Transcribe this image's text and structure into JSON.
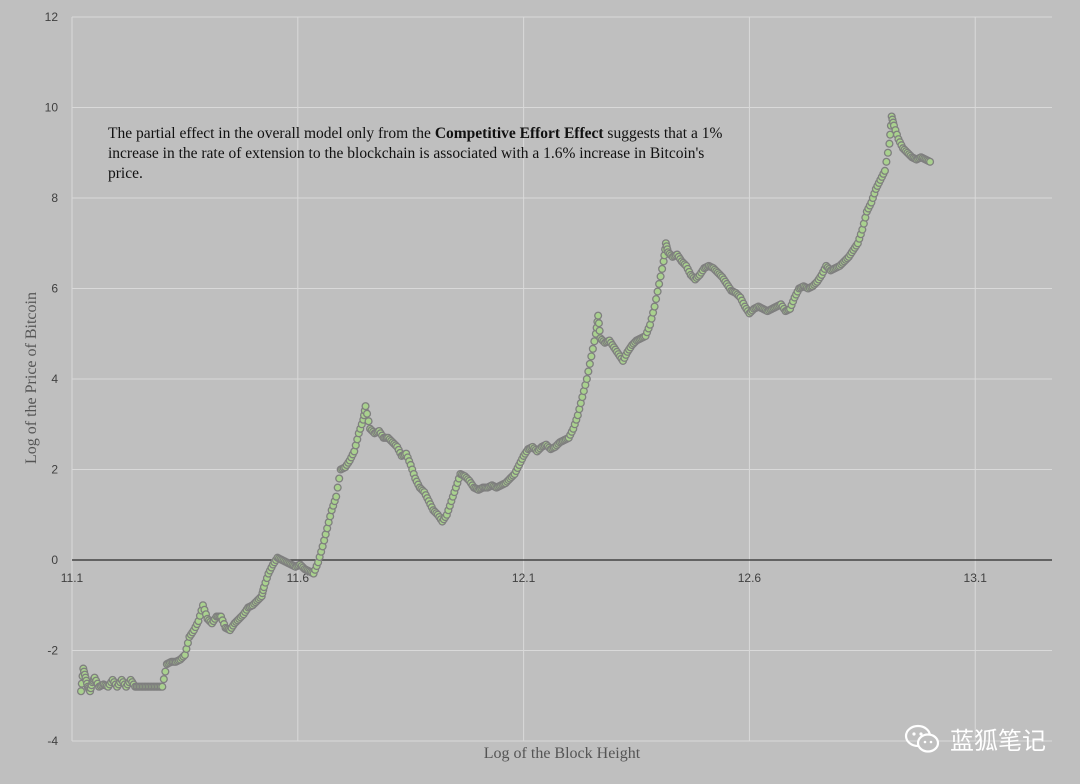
{
  "chart_data": {
    "type": "scatter",
    "xlabel": "Log of the Block Height",
    "ylabel": "Log  of  the  Price  of  Bitcoin",
    "xlim": [
      11.1,
      13.27
    ],
    "ylim": [
      -4,
      12
    ],
    "x_ticks": [
      "11.1",
      "11.6",
      "12.1",
      "12.6",
      "13.1"
    ],
    "y_ticks": [
      "-4",
      "-2",
      "0",
      "2",
      "4",
      "6",
      "8",
      "10",
      "12"
    ],
    "grid": true,
    "annotation": {
      "before": "The partial effect in the overall model only from the ",
      "bold": "Competitive Effort Effect",
      "after": " suggests that a 1% increase in the rate of extension to the blockchain is associated with a 1.6% increase in Bitcoin's price."
    },
    "marker_fill": "#a9d18e",
    "marker_stroke": "#7f7f7f",
    "points": [
      [
        11.12,
        -2.9
      ],
      [
        11.125,
        -2.4
      ],
      [
        11.13,
        -2.6
      ],
      [
        11.135,
        -2.8
      ],
      [
        11.14,
        -2.9
      ],
      [
        11.145,
        -2.7
      ],
      [
        11.15,
        -2.6
      ],
      [
        11.16,
        -2.8
      ],
      [
        11.17,
        -2.75
      ],
      [
        11.18,
        -2.8
      ],
      [
        11.19,
        -2.65
      ],
      [
        11.2,
        -2.8
      ],
      [
        11.21,
        -2.65
      ],
      [
        11.22,
        -2.8
      ],
      [
        11.23,
        -2.65
      ],
      [
        11.24,
        -2.8
      ],
      [
        11.25,
        -2.8
      ],
      [
        11.26,
        -2.8
      ],
      [
        11.27,
        -2.8
      ],
      [
        11.28,
        -2.8
      ],
      [
        11.29,
        -2.8
      ],
      [
        11.3,
        -2.8
      ],
      [
        11.31,
        -2.3
      ],
      [
        11.32,
        -2.25
      ],
      [
        11.33,
        -2.25
      ],
      [
        11.34,
        -2.2
      ],
      [
        11.35,
        -2.1
      ],
      [
        11.36,
        -1.7
      ],
      [
        11.37,
        -1.55
      ],
      [
        11.38,
        -1.35
      ],
      [
        11.39,
        -1.0
      ],
      [
        11.4,
        -1.3
      ],
      [
        11.41,
        -1.4
      ],
      [
        11.42,
        -1.25
      ],
      [
        11.43,
        -1.25
      ],
      [
        11.44,
        -1.5
      ],
      [
        11.45,
        -1.55
      ],
      [
        11.46,
        -1.4
      ],
      [
        11.47,
        -1.3
      ],
      [
        11.48,
        -1.2
      ],
      [
        11.49,
        -1.05
      ],
      [
        11.5,
        -1.0
      ],
      [
        11.51,
        -0.9
      ],
      [
        11.52,
        -0.8
      ],
      [
        11.525,
        -0.6
      ],
      [
        11.535,
        -0.3
      ],
      [
        11.545,
        -0.1
      ],
      [
        11.555,
        0.05
      ],
      [
        11.565,
        0.0
      ],
      [
        11.575,
        -0.05
      ],
      [
        11.585,
        -0.1
      ],
      [
        11.595,
        -0.15
      ],
      [
        11.605,
        -0.1
      ],
      [
        11.615,
        -0.2
      ],
      [
        11.625,
        -0.25
      ],
      [
        11.635,
        -0.3
      ],
      [
        11.645,
        -0.05
      ],
      [
        11.655,
        0.3
      ],
      [
        11.665,
        0.7
      ],
      [
        11.675,
        1.1
      ],
      [
        11.685,
        1.4
      ],
      [
        11.695,
        2.0
      ],
      [
        11.705,
        2.05
      ],
      [
        11.715,
        2.2
      ],
      [
        11.725,
        2.4
      ],
      [
        11.735,
        2.8
      ],
      [
        11.745,
        3.1
      ],
      [
        11.75,
        3.4
      ],
      [
        11.76,
        2.9
      ],
      [
        11.77,
        2.8
      ],
      [
        11.78,
        2.85
      ],
      [
        11.79,
        2.7
      ],
      [
        11.8,
        2.7
      ],
      [
        11.81,
        2.6
      ],
      [
        11.82,
        2.5
      ],
      [
        11.83,
        2.3
      ],
      [
        11.84,
        2.35
      ],
      [
        11.85,
        2.1
      ],
      [
        11.86,
        1.8
      ],
      [
        11.87,
        1.6
      ],
      [
        11.88,
        1.5
      ],
      [
        11.89,
        1.3
      ],
      [
        11.9,
        1.1
      ],
      [
        11.91,
        1.0
      ],
      [
        11.92,
        0.85
      ],
      [
        11.93,
        1.0
      ],
      [
        11.94,
        1.3
      ],
      [
        11.95,
        1.6
      ],
      [
        11.96,
        1.9
      ],
      [
        11.97,
        1.85
      ],
      [
        11.98,
        1.75
      ],
      [
        11.99,
        1.6
      ],
      [
        12.0,
        1.55
      ],
      [
        12.01,
        1.6
      ],
      [
        12.02,
        1.6
      ],
      [
        12.03,
        1.65
      ],
      [
        12.04,
        1.6
      ],
      [
        12.05,
        1.65
      ],
      [
        12.06,
        1.7
      ],
      [
        12.07,
        1.8
      ],
      [
        12.08,
        1.9
      ],
      [
        12.09,
        2.1
      ],
      [
        12.1,
        2.3
      ],
      [
        12.11,
        2.45
      ],
      [
        12.12,
        2.5
      ],
      [
        12.13,
        2.4
      ],
      [
        12.14,
        2.5
      ],
      [
        12.15,
        2.55
      ],
      [
        12.16,
        2.45
      ],
      [
        12.17,
        2.5
      ],
      [
        12.18,
        2.6
      ],
      [
        12.19,
        2.65
      ],
      [
        12.2,
        2.7
      ],
      [
        12.21,
        2.9
      ],
      [
        12.22,
        3.2
      ],
      [
        12.23,
        3.6
      ],
      [
        12.24,
        4.0
      ],
      [
        12.25,
        4.5
      ],
      [
        12.26,
        5.0
      ],
      [
        12.265,
        5.4
      ],
      [
        12.27,
        4.9
      ],
      [
        12.28,
        4.8
      ],
      [
        12.29,
        4.85
      ],
      [
        12.3,
        4.7
      ],
      [
        12.31,
        4.55
      ],
      [
        12.32,
        4.4
      ],
      [
        12.33,
        4.6
      ],
      [
        12.34,
        4.75
      ],
      [
        12.35,
        4.85
      ],
      [
        12.36,
        4.9
      ],
      [
        12.37,
        4.95
      ],
      [
        12.38,
        5.2
      ],
      [
        12.39,
        5.6
      ],
      [
        12.4,
        6.1
      ],
      [
        12.41,
        6.6
      ],
      [
        12.415,
        7.0
      ],
      [
        12.42,
        6.8
      ],
      [
        12.43,
        6.7
      ],
      [
        12.44,
        6.75
      ],
      [
        12.45,
        6.6
      ],
      [
        12.46,
        6.5
      ],
      [
        12.47,
        6.3
      ],
      [
        12.48,
        6.2
      ],
      [
        12.49,
        6.3
      ],
      [
        12.5,
        6.45
      ],
      [
        12.51,
        6.5
      ],
      [
        12.52,
        6.45
      ],
      [
        12.53,
        6.35
      ],
      [
        12.54,
        6.25
      ],
      [
        12.55,
        6.1
      ],
      [
        12.56,
        5.95
      ],
      [
        12.57,
        5.9
      ],
      [
        12.58,
        5.8
      ],
      [
        12.59,
        5.6
      ],
      [
        12.6,
        5.45
      ],
      [
        12.61,
        5.55
      ],
      [
        12.62,
        5.6
      ],
      [
        12.63,
        5.55
      ],
      [
        12.64,
        5.5
      ],
      [
        12.65,
        5.55
      ],
      [
        12.66,
        5.6
      ],
      [
        12.67,
        5.65
      ],
      [
        12.68,
        5.5
      ],
      [
        12.69,
        5.55
      ],
      [
        12.7,
        5.8
      ],
      [
        12.71,
        6.0
      ],
      [
        12.72,
        6.05
      ],
      [
        12.73,
        6.0
      ],
      [
        12.74,
        6.05
      ],
      [
        12.75,
        6.15
      ],
      [
        12.76,
        6.3
      ],
      [
        12.77,
        6.5
      ],
      [
        12.78,
        6.4
      ],
      [
        12.79,
        6.45
      ],
      [
        12.8,
        6.5
      ],
      [
        12.81,
        6.6
      ],
      [
        12.82,
        6.7
      ],
      [
        12.83,
        6.85
      ],
      [
        12.84,
        7.0
      ],
      [
        12.85,
        7.3
      ],
      [
        12.86,
        7.7
      ],
      [
        12.87,
        7.9
      ],
      [
        12.88,
        8.2
      ],
      [
        12.89,
        8.4
      ],
      [
        12.9,
        8.6
      ],
      [
        12.91,
        9.2
      ],
      [
        12.915,
        9.8
      ],
      [
        12.92,
        9.6
      ],
      [
        12.93,
        9.3
      ],
      [
        12.94,
        9.1
      ],
      [
        12.95,
        9.0
      ],
      [
        12.96,
        8.9
      ],
      [
        12.97,
        8.85
      ],
      [
        12.98,
        8.9
      ],
      [
        12.99,
        8.85
      ],
      [
        13.0,
        8.8
      ]
    ]
  },
  "watermark": {
    "text": "蓝狐笔记",
    "icon": "wechat-icon"
  }
}
